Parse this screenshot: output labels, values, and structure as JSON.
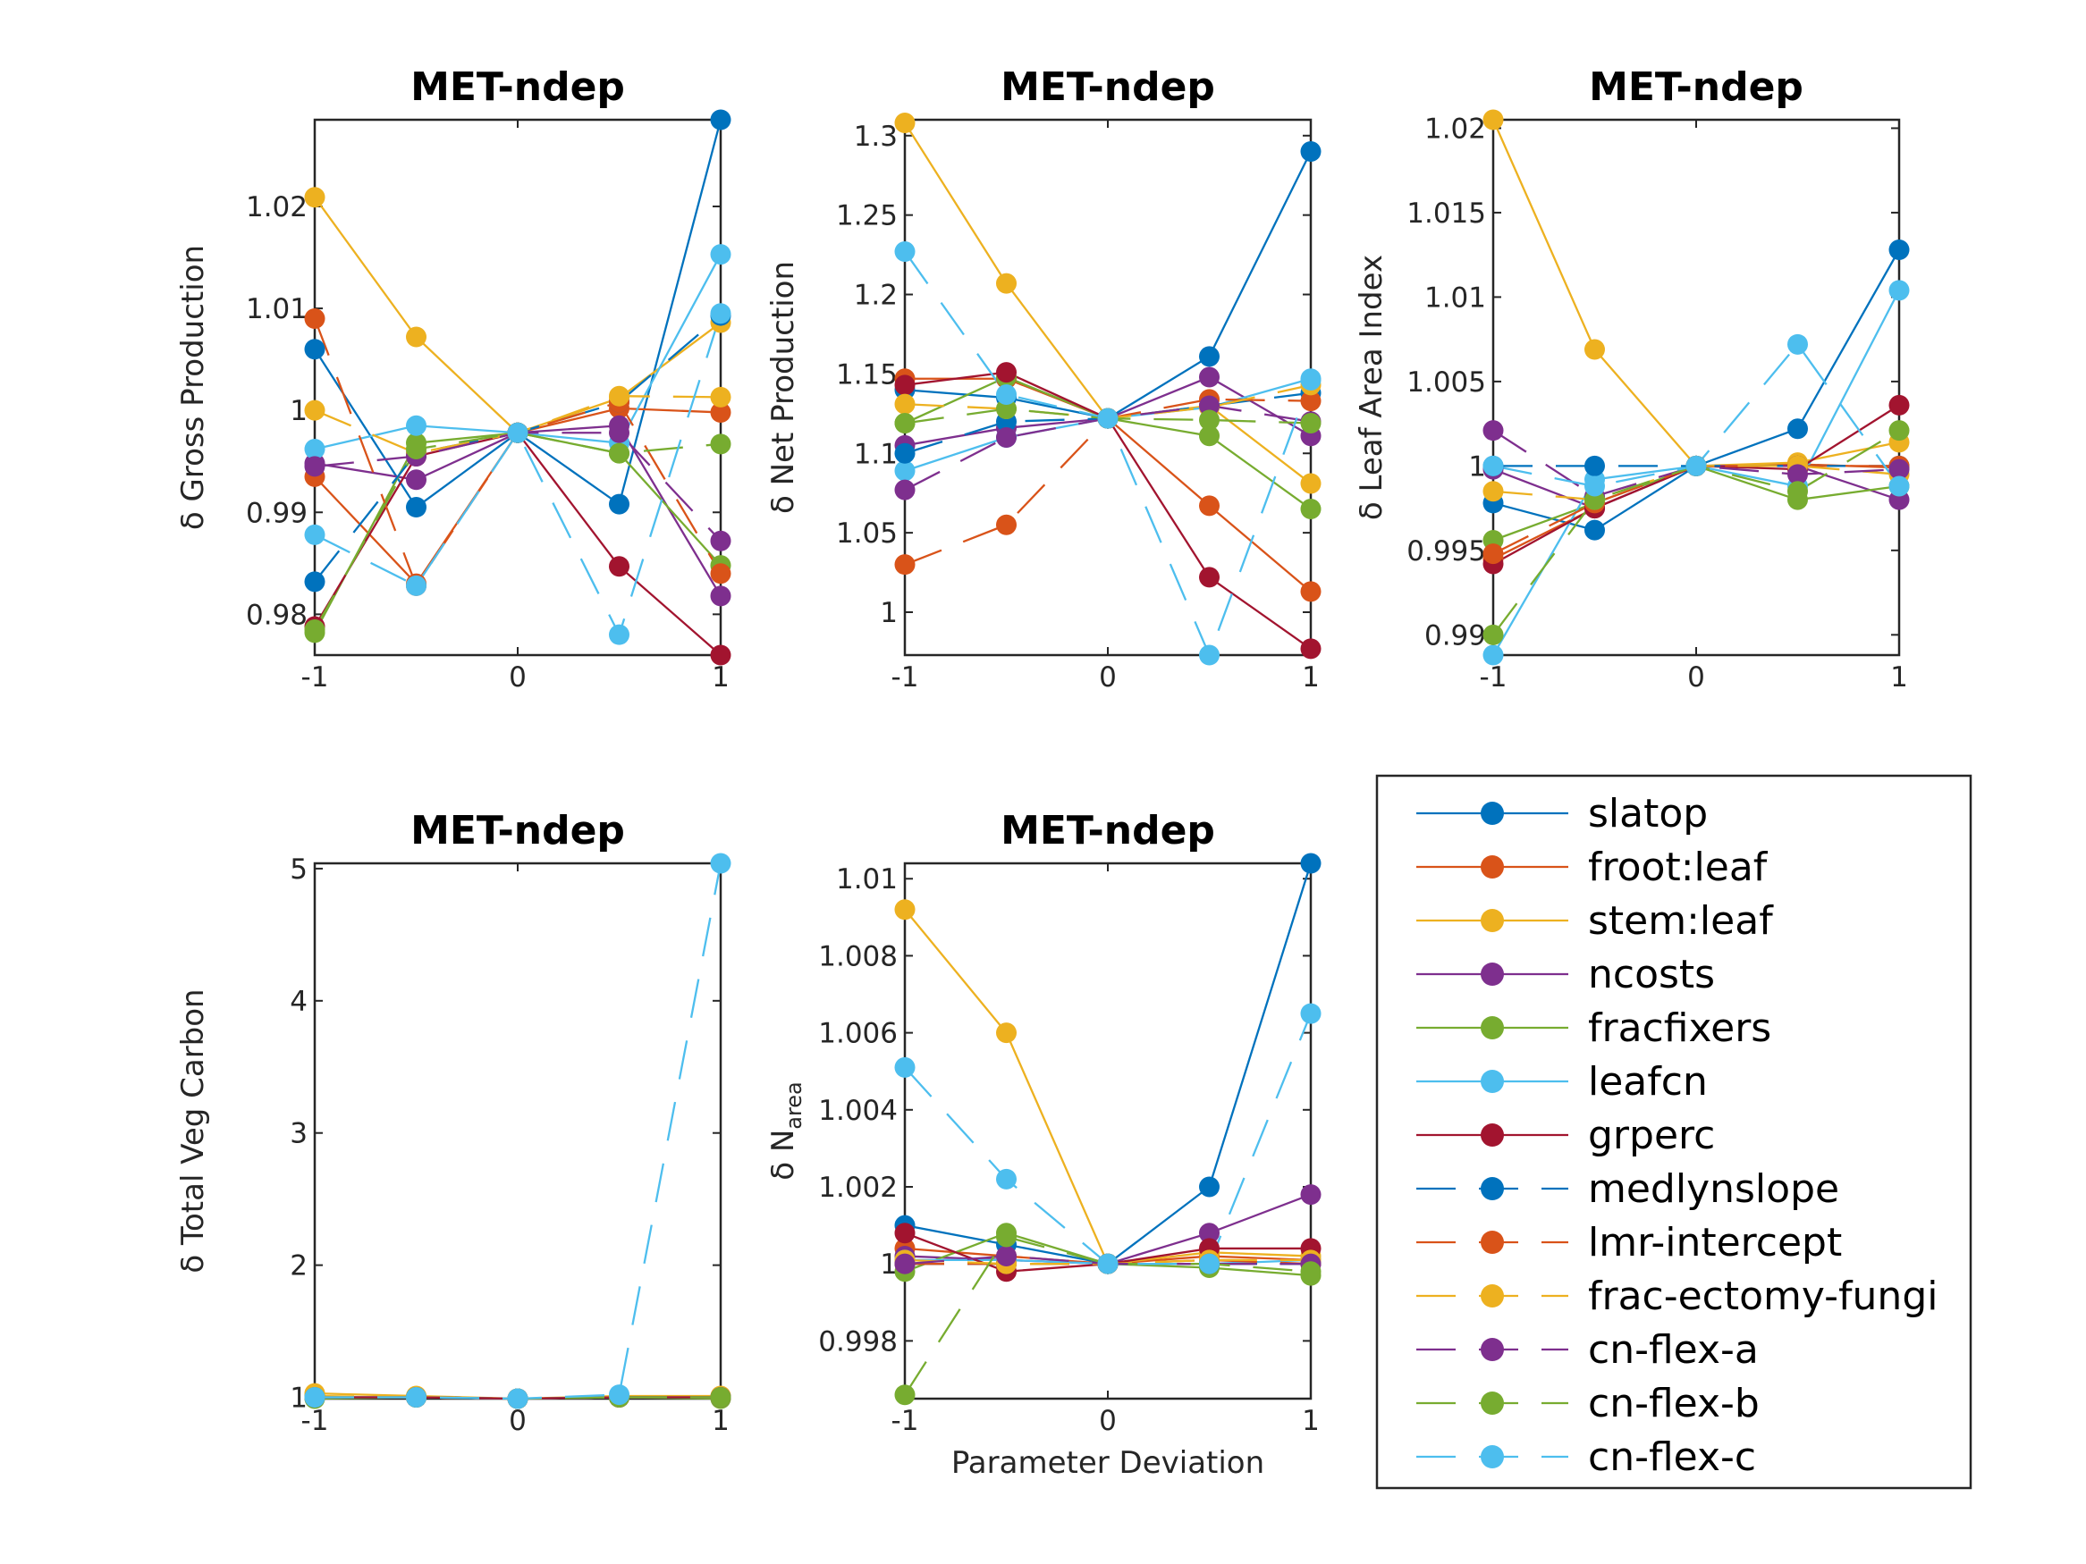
{
  "series": [
    {
      "name": "slatop",
      "color": "#0072BD",
      "dash": false
    },
    {
      "name": "froot:leaf",
      "color": "#D95319",
      "dash": false
    },
    {
      "name": "stem:leaf",
      "color": "#EDB120",
      "dash": false
    },
    {
      "name": "ncosts",
      "color": "#7E2F8E",
      "dash": false
    },
    {
      "name": "fracfixers",
      "color": "#77AC30",
      "dash": false
    },
    {
      "name": "leafcn",
      "color": "#4DBEEE",
      "dash": false
    },
    {
      "name": "grperc",
      "color": "#A2142F",
      "dash": false
    },
    {
      "name": "medlynslope",
      "color": "#0072BD",
      "dash": true
    },
    {
      "name": "lmr-intercept",
      "color": "#D95319",
      "dash": true
    },
    {
      "name": "frac-ectomy-fungi",
      "color": "#EDB120",
      "dash": true
    },
    {
      "name": "cn-flex-a",
      "color": "#7E2F8E",
      "dash": true
    },
    {
      "name": "cn-flex-b",
      "color": "#77AC30",
      "dash": true
    },
    {
      "name": "cn-flex-c",
      "color": "#4DBEEE",
      "dash": true
    }
  ],
  "chart_data": [
    {
      "type": "line",
      "title": "MET-ndep",
      "ylabel": "δ Gross Production",
      "x": [
        -1,
        -0.5,
        0,
        0.5,
        1
      ],
      "xticks": [
        "-1",
        "0",
        "1"
      ],
      "ylim": [
        0.976,
        1.0285
      ],
      "yticks": [
        0.98,
        0.99,
        1,
        1.01,
        1.02
      ],
      "ytick_labels": [
        "0.98",
        "0.99",
        "1",
        "1.01",
        "1.02"
      ],
      "series": [
        {
          "name": "slatop",
          "values": [
            1.006,
            0.9905,
            0.9978,
            0.9908,
            1.0285
          ]
        },
        {
          "name": "froot:leaf",
          "values": [
            0.9935,
            0.983,
            0.9978,
            1.0002,
            0.9998
          ]
        },
        {
          "name": "stem:leaf",
          "values": [
            1.0209,
            1.0072,
            0.9978,
            1.0012,
            1.0086
          ]
        },
        {
          "name": "ncosts",
          "values": [
            0.9948,
            0.9932,
            0.9978,
            0.9985,
            0.9818
          ]
        },
        {
          "name": "fracfixers",
          "values": [
            0.9782,
            0.9968,
            0.9978,
            0.9958,
            0.9848
          ]
        },
        {
          "name": "leafcn",
          "values": [
            0.9962,
            0.9985,
            0.9978,
            0.9968,
            1.0153
          ]
        },
        {
          "name": "grperc",
          "values": [
            0.9788,
            0.9955,
            0.9978,
            0.9847,
            0.976
          ]
        },
        {
          "name": "medlynslope",
          "values": [
            0.9832,
            0.9958,
            0.9978,
            1.0008,
            1.0093
          ]
        },
        {
          "name": "lmr-intercept",
          "values": [
            1.009,
            0.9828,
            0.9978,
            1.0008,
            0.984
          ]
        },
        {
          "name": "frac-ectomy-fungi",
          "values": [
            1.0,
            0.9958,
            0.9978,
            1.0014,
            1.0013
          ]
        },
        {
          "name": "cn-flex-a",
          "values": [
            0.9945,
            0.9955,
            0.9978,
            0.9978,
            0.9872
          ]
        },
        {
          "name": "cn-flex-b",
          "values": [
            0.9785,
            0.9962,
            0.9978,
            0.9958,
            0.9967
          ]
        },
        {
          "name": "cn-flex-c",
          "values": [
            0.9878,
            0.9828,
            0.9978,
            0.978,
            1.0095
          ]
        }
      ]
    },
    {
      "type": "line",
      "title": "MET-ndep",
      "ylabel": "δ Net Production",
      "x": [
        -1,
        -0.5,
        0,
        0.5,
        1
      ],
      "xticks": [
        "-1",
        "0",
        "1"
      ],
      "ylim": [
        0.973,
        1.31
      ],
      "yticks": [
        1,
        1.05,
        1.1,
        1.15,
        1.2,
        1.25,
        1.3
      ],
      "ytick_labels": [
        "1",
        "1.05",
        "1.1",
        "1.15",
        "1.2",
        "1.25",
        "1.3"
      ],
      "series": [
        {
          "name": "slatop",
          "values": [
            1.14,
            1.135,
            1.122,
            1.161,
            1.29
          ]
        },
        {
          "name": "froot:leaf",
          "values": [
            1.147,
            1.147,
            1.122,
            1.067,
            1.013
          ]
        },
        {
          "name": "stem:leaf",
          "values": [
            1.308,
            1.207,
            1.122,
            1.13,
            1.081
          ]
        },
        {
          "name": "ncosts",
          "values": [
            1.105,
            1.116,
            1.122,
            1.148,
            1.111
          ]
        },
        {
          "name": "fracfixers",
          "values": [
            1.119,
            1.148,
            1.122,
            1.111,
            1.065
          ]
        },
        {
          "name": "leafcn",
          "values": [
            1.089,
            1.11,
            1.122,
            1.129,
            1.147
          ]
        },
        {
          "name": "grperc",
          "values": [
            1.143,
            1.151,
            1.122,
            1.022,
            0.977
          ]
        },
        {
          "name": "medlynslope",
          "values": [
            1.1,
            1.12,
            1.122,
            1.13,
            1.138
          ]
        },
        {
          "name": "lmr-intercept",
          "values": [
            1.03,
            1.055,
            1.122,
            1.134,
            1.133
          ]
        },
        {
          "name": "frac-ectomy-fungi",
          "values": [
            1.131,
            1.128,
            1.122,
            1.129,
            1.143
          ]
        },
        {
          "name": "cn-flex-a",
          "values": [
            1.077,
            1.11,
            1.122,
            1.13,
            1.12
          ]
        },
        {
          "name": "cn-flex-b",
          "values": [
            1.119,
            1.128,
            1.122,
            1.121,
            1.119
          ]
        },
        {
          "name": "cn-flex-c",
          "values": [
            1.227,
            1.137,
            1.122,
            0.973,
            1.146
          ]
        }
      ]
    },
    {
      "type": "line",
      "title": "MET-ndep",
      "ylabel": "δ Leaf Area Index",
      "x": [
        -1,
        -0.5,
        0,
        0.5,
        1
      ],
      "xticks": [
        "-1",
        "0",
        "1"
      ],
      "ylim": [
        0.9888,
        1.0205
      ],
      "yticks": [
        0.99,
        0.995,
        1,
        1.005,
        1.01,
        1.015,
        1.02
      ],
      "ytick_labels": [
        "0.99",
        "0.995",
        "1",
        "1.005",
        "1.01",
        "1.015",
        "1.02"
      ],
      "series": [
        {
          "name": "slatop",
          "values": [
            0.9978,
            0.9962,
            1.0,
            1.0022,
            1.0128
          ]
        },
        {
          "name": "froot:leaf",
          "values": [
            0.9945,
            0.9975,
            1.0,
            1.0001,
            0.9999
          ]
        },
        {
          "name": "stem:leaf",
          "values": [
            1.0205,
            1.0069,
            1.0,
            1.0002,
            1.0014
          ]
        },
        {
          "name": "ncosts",
          "values": [
            0.9998,
            0.9975,
            1.0,
            1.0,
            0.998
          ]
        },
        {
          "name": "fracfixers",
          "values": [
            0.9956,
            0.9978,
            1.0,
            0.998,
            0.9988
          ]
        },
        {
          "name": "leafcn",
          "values": [
            0.9888,
            0.9992,
            1.0,
            0.9988,
            1.0104
          ]
        },
        {
          "name": "grperc",
          "values": [
            0.9942,
            0.9975,
            1.0,
            0.9998,
            1.0036
          ]
        },
        {
          "name": "medlynslope",
          "values": [
            1.0,
            1.0,
            1.0,
            1.0,
            1.0
          ]
        },
        {
          "name": "lmr-intercept",
          "values": [
            0.9948,
            0.9978,
            1.0,
            1.0,
            1.0
          ]
        },
        {
          "name": "frac-ectomy-fungi",
          "values": [
            0.9985,
            0.998,
            1.0,
            1.0,
            0.9995
          ]
        },
        {
          "name": "cn-flex-a",
          "values": [
            1.0021,
            0.9982,
            1.0,
            0.9995,
            0.9998
          ]
        },
        {
          "name": "cn-flex-b",
          "values": [
            0.99,
            0.998,
            1.0,
            0.9985,
            1.0021
          ]
        },
        {
          "name": "cn-flex-c",
          "values": [
            1.0,
            0.9988,
            1.0,
            1.0072,
            0.9988
          ]
        }
      ]
    },
    {
      "type": "line",
      "title": "MET-ndep",
      "ylabel": "δ Total Veg Carbon",
      "x": [
        -1,
        -0.5,
        0,
        0.5,
        1
      ],
      "xticks": [
        "-1",
        "0",
        "1"
      ],
      "ylim": [
        0.99,
        5.04
      ],
      "yticks": [
        1,
        2,
        3,
        4,
        5
      ],
      "ytick_labels": [
        "1",
        "2",
        "3",
        "4",
        "5"
      ],
      "series": [
        {
          "name": "slatop",
          "values": [
            1.0,
            1.0,
            0.99,
            1.0,
            1.0
          ]
        },
        {
          "name": "froot:leaf",
          "values": [
            1.0,
            1.0,
            0.99,
            1.0,
            1.0
          ]
        },
        {
          "name": "stem:leaf",
          "values": [
            1.03,
            1.01,
            0.99,
            1.01,
            1.01
          ]
        },
        {
          "name": "ncosts",
          "values": [
            1.0,
            1.0,
            0.99,
            1.0,
            1.0
          ]
        },
        {
          "name": "fracfixers",
          "values": [
            0.99,
            1.0,
            0.99,
            1.0,
            0.99
          ]
        },
        {
          "name": "leafcn",
          "values": [
            1.0,
            1.0,
            0.99,
            1.0,
            1.0
          ]
        },
        {
          "name": "grperc",
          "values": [
            1.0,
            1.0,
            0.99,
            1.0,
            1.0
          ]
        },
        {
          "name": "medlynslope",
          "values": [
            1.0,
            1.0,
            0.99,
            1.0,
            1.0
          ]
        },
        {
          "name": "lmr-intercept",
          "values": [
            1.0,
            1.0,
            0.99,
            1.0,
            1.0
          ]
        },
        {
          "name": "frac-ectomy-fungi",
          "values": [
            1.01,
            1.0,
            0.99,
            1.0,
            1.0
          ]
        },
        {
          "name": "cn-flex-a",
          "values": [
            1.0,
            1.0,
            0.99,
            1.0,
            1.0
          ]
        },
        {
          "name": "cn-flex-b",
          "values": [
            1.0,
            1.0,
            0.99,
            1.0,
            1.0
          ]
        },
        {
          "name": "cn-flex-c",
          "values": [
            1.0,
            1.0,
            0.99,
            1.02,
            5.04
          ]
        }
      ]
    },
    {
      "type": "line",
      "title": "MET-ndep",
      "ylabel": "δ N",
      "ylabel_subscript": "area",
      "xlabel": "Parameter Deviation",
      "x": [
        -1,
        -0.5,
        0,
        0.5,
        1
      ],
      "xticks": [
        "-1",
        "0",
        "1"
      ],
      "ylim": [
        0.9965,
        1.0104
      ],
      "yticks": [
        0.998,
        1,
        1.002,
        1.004,
        1.006,
        1.008,
        1.01
      ],
      "ytick_labels": [
        "0.998",
        "1",
        "1.002",
        "1.004",
        "1.006",
        "1.008",
        "1.01"
      ],
      "series": [
        {
          "name": "slatop",
          "values": [
            1.001,
            1.0005,
            1.0,
            1.002,
            1.0104
          ]
        },
        {
          "name": "froot:leaf",
          "values": [
            1.0004,
            1.0002,
            1.0,
            1.0002,
            1.0001
          ]
        },
        {
          "name": "stem:leaf",
          "values": [
            1.0092,
            1.006,
            1.0,
            1.0003,
            1.0002
          ]
        },
        {
          "name": "ncosts",
          "values": [
            1.0002,
            1.0001,
            1.0,
            1.0008,
            1.0018
          ]
        },
        {
          "name": "fracfixers",
          "values": [
            0.9998,
            1.0008,
            1.0,
            0.9999,
            0.9997
          ]
        },
        {
          "name": "leafcn",
          "values": [
            1.0001,
            1.0001,
            1.0,
            1.0,
            1.0001
          ]
        },
        {
          "name": "grperc",
          "values": [
            1.0008,
            0.9998,
            1.0,
            1.0004,
            1.0004
          ]
        },
        {
          "name": "medlynslope",
          "values": [
            1.0,
            1.0,
            1.0,
            1.0,
            1.0
          ]
        },
        {
          "name": "lmr-intercept",
          "values": [
            1.0,
            1.0,
            1.0,
            1.0001,
            1.0
          ]
        },
        {
          "name": "frac-ectomy-fungi",
          "values": [
            1.0001,
            1.0,
            1.0,
            1.0001,
            1.0001
          ]
        },
        {
          "name": "cn-flex-a",
          "values": [
            1.0,
            1.0002,
            1.0,
            1.0,
            1.0
          ]
        },
        {
          "name": "cn-flex-b",
          "values": [
            0.9966,
            1.0007,
            1.0,
            1.0,
            0.9998
          ]
        },
        {
          "name": "cn-flex-c",
          "values": [
            1.0051,
            1.0022,
            1.0,
            1.0,
            1.0065
          ]
        }
      ]
    }
  ]
}
